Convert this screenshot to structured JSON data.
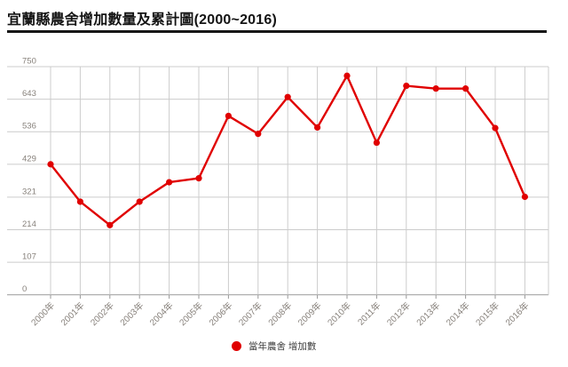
{
  "title": "宜蘭縣農舍增加數量及累計圖(2000~2016)",
  "legend": {
    "label": "當年農舍 增加數"
  },
  "colors": {
    "line": "#e00000",
    "grid": "#cccccc",
    "axis_line": "#999999",
    "axis_label": "#87817b",
    "title": "#141414",
    "legend_text": "#3f3f3f",
    "background": "#ffffff"
  },
  "chart_data": {
    "type": "line",
    "title": "宜蘭縣農舍增加數量及累計圖(2000~2016)",
    "x": [
      "2000年",
      "2001年",
      "2002年",
      "2003年",
      "2004年",
      "2005年",
      "2006年",
      "2007年",
      "2008年",
      "2009年",
      "2010年",
      "2011年",
      "2012年",
      "2013年",
      "2014年",
      "2015年",
      "2016年"
    ],
    "series": [
      {
        "name": "當年農舍 增加數",
        "color": "#e00000",
        "values": [
          429,
          306,
          229,
          306,
          370,
          383,
          588,
          529,
          650,
          550,
          720,
          500,
          687,
          678,
          678,
          548,
          322
        ]
      }
    ],
    "xlabel": "",
    "ylabel": "",
    "ylim": [
      0,
      750
    ],
    "yticks": [
      0,
      107,
      214,
      321,
      429,
      536,
      643,
      750
    ],
    "grid": true,
    "legend_position": "bottom"
  }
}
